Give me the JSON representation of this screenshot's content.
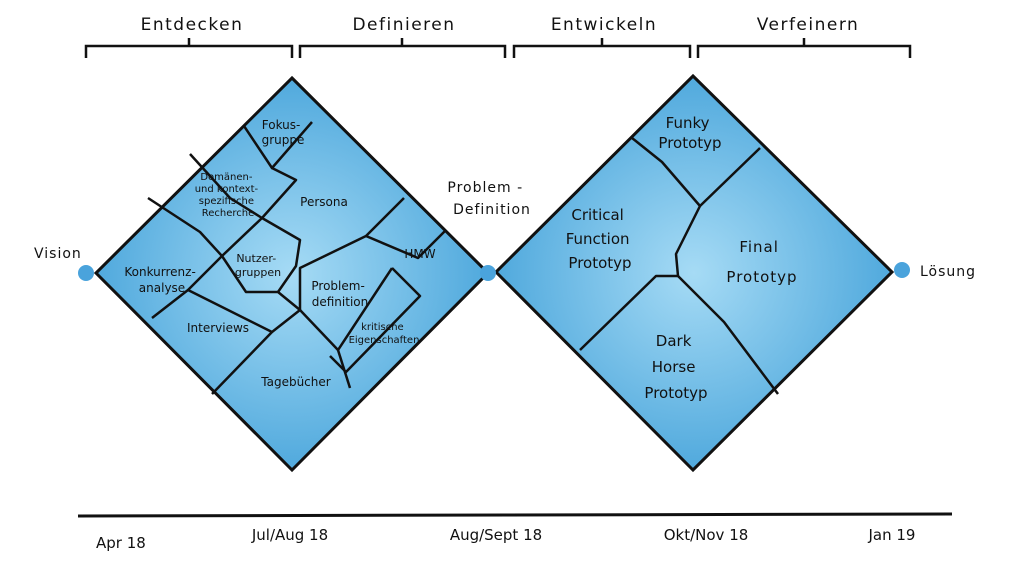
{
  "phases": [
    "Entdecken",
    "Definieren",
    "Entwickeln",
    "Verfeinern"
  ],
  "endpoints": {
    "start": "Vision",
    "middle": [
      "Problem -",
      "Definition"
    ],
    "end": "Lösung"
  },
  "diamond1": {
    "fokusgruppe": [
      "Fokus-",
      "gruppe"
    ],
    "domaenen": [
      "Domänen-",
      "und kontext-",
      "spezifische",
      "Recherche"
    ],
    "persona": "Persona",
    "nutzergruppen": [
      "Nutzer-",
      "gruppen"
    ],
    "konkurrenz": [
      "Konkurrenz-",
      "analyse"
    ],
    "hmw": "HMW",
    "problemdefinition": [
      "Problem-",
      "definition"
    ],
    "interviews": "Interviews",
    "kritische": [
      "kritische",
      "Eigenschaften"
    ],
    "tagebuecher": "Tagebücher"
  },
  "diamond2": {
    "funky": [
      "Funky",
      "Prototyp"
    ],
    "critical": [
      "Critical",
      "Function",
      "Prototyp"
    ],
    "final": [
      "Final",
      "Prototyp"
    ],
    "darkhorse": [
      "Dark",
      "Horse",
      "Prototyp"
    ]
  },
  "timeline": [
    "Apr 18",
    "Jul/Aug 18",
    "Aug/Sept 18",
    "Okt/Nov 18",
    "Jan 19"
  ],
  "colors": {
    "fill": "#4aa7dd",
    "fill_light": "#8fd0f1",
    "stroke": "#111111",
    "dot": "#4aa3dc"
  }
}
